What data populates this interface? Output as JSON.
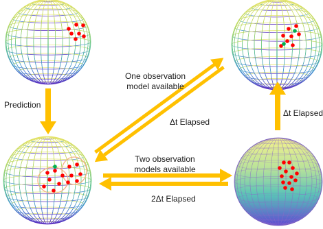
{
  "labels": {
    "prediction": "Prediction",
    "one_obs_line1": "One observation",
    "one_obs_line2": "model available",
    "dt_elapsed_mid": "Δt Elapsed",
    "dt_elapsed_right": "Δt Elapsed",
    "two_obs_line1": "Two observation",
    "two_obs_line2": "models available",
    "two_dt_elapsed": "2Δt Elapsed"
  },
  "colors": {
    "arrow": "#FFC000",
    "particle": "#FF0000",
    "best_estimate": "#00B050",
    "ellipse": "#F4B183"
  }
}
